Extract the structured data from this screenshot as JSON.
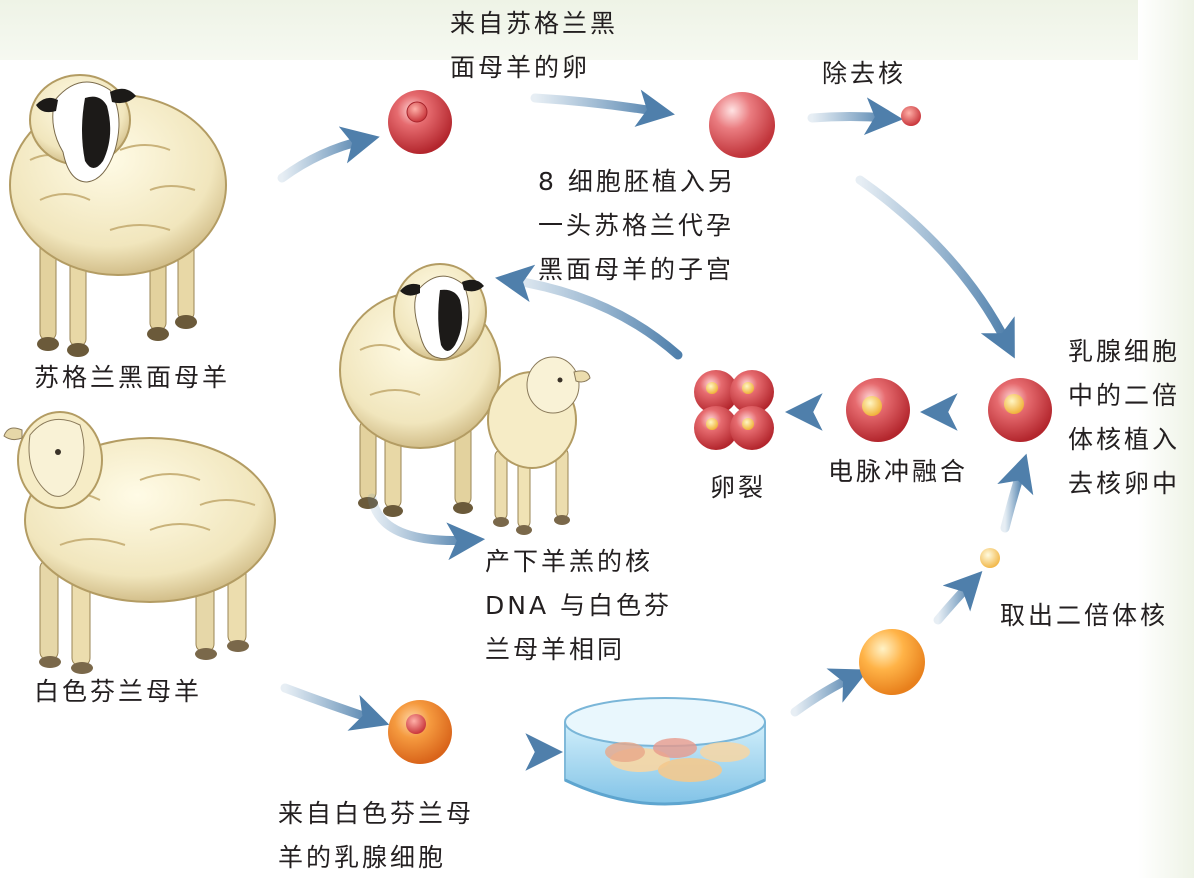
{
  "labels": {
    "egg_source": "来自苏格兰黑\n面母羊的卵",
    "remove_nucleus": "除去核",
    "embryo_transfer": "8 细胞胚植入另\n一头苏格兰代孕\n黑面母羊的子宫",
    "scottish_ewe": "苏格兰黑面母羊",
    "finnish_ewe": "白色芬兰母羊",
    "nucleus_insert": "乳腺细胞\n中的二倍\n体核植入\n去核卵中",
    "electric_fusion": "电脉冲融合",
    "cleavage": "卵裂",
    "lamb_born": "产下羊羔的核\nDNA 与白色芬\n兰母羊相同",
    "extract_nucleus": "取出二倍体核",
    "mammary_source": "来自白色芬兰母\n羊的乳腺细胞"
  },
  "colors": {
    "arrow": "#5f8fb8",
    "egg": "#d9434a",
    "orange_cell": "#f18a2c",
    "wool": "#f4ecc6",
    "dish_water": "#9fd4ef"
  }
}
